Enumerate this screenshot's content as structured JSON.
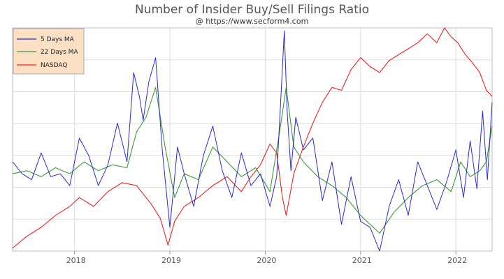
{
  "chart_data": {
    "type": "line",
    "title": "Number of Insider Buy/Sell Filings Ratio",
    "subtitle": "@ https://www.secform4.com",
    "xlabel": "",
    "ylabel": "",
    "x_ticks": [
      "2018",
      "2019",
      "2020",
      "2021",
      "2022"
    ],
    "xlim": [
      2017.35,
      2022.38
    ],
    "ylim": [
      0,
      7.5
    ],
    "grid": true,
    "legend_position": "top-left",
    "series": [
      {
        "name": "5 Days MA",
        "color": "#2929d6",
        "x": [
          2017.35,
          2017.45,
          2017.55,
          2017.65,
          2017.75,
          2017.85,
          2017.95,
          2018.05,
          2018.15,
          2018.25,
          2018.35,
          2018.45,
          2018.55,
          2018.62,
          2018.68,
          2018.72,
          2018.78,
          2018.85,
          2018.92,
          2019.0,
          2019.08,
          2019.15,
          2019.25,
          2019.35,
          2019.45,
          2019.55,
          2019.65,
          2019.75,
          2019.85,
          2019.95,
          2020.05,
          2020.12,
          2020.17,
          2020.2,
          2020.23,
          2020.27,
          2020.32,
          2020.4,
          2020.5,
          2020.6,
          2020.7,
          2020.8,
          2020.9,
          2021.0,
          2021.1,
          2021.2,
          2021.3,
          2021.4,
          2021.5,
          2021.6,
          2021.7,
          2021.8,
          2021.9,
          2022.0,
          2022.08,
          2022.15,
          2022.22,
          2022.28,
          2022.33,
          2022.38
        ],
        "values": [
          3.0,
          2.6,
          2.4,
          3.3,
          2.5,
          2.6,
          2.2,
          3.8,
          3.2,
          2.2,
          2.9,
          4.3,
          3.0,
          6.0,
          5.2,
          4.4,
          5.7,
          6.5,
          3.4,
          0.8,
          3.5,
          2.6,
          1.5,
          3.2,
          4.2,
          2.7,
          1.8,
          3.3,
          2.2,
          2.6,
          1.5,
          2.5,
          5.5,
          7.4,
          4.7,
          2.7,
          4.5,
          3.4,
          3.8,
          1.7,
          3.0,
          0.9,
          2.5,
          1.0,
          0.8,
          0.0,
          1.5,
          2.4,
          1.2,
          3.0,
          2.2,
          1.4,
          2.3,
          3.4,
          1.8,
          3.7,
          2.1,
          4.7,
          2.4,
          5.0
        ]
      },
      {
        "name": "22 Days MA",
        "color": "#3a9a3a",
        "x": [
          2017.35,
          2017.5,
          2017.65,
          2017.8,
          2017.95,
          2018.1,
          2018.25,
          2018.4,
          2018.55,
          2018.65,
          2018.75,
          2018.85,
          2018.95,
          2019.05,
          2019.15,
          2019.3,
          2019.45,
          2019.6,
          2019.75,
          2019.9,
          2020.05,
          2020.15,
          2020.22,
          2020.3,
          2020.4,
          2020.55,
          2020.7,
          2020.85,
          2021.0,
          2021.1,
          2021.2,
          2021.35,
          2021.5,
          2021.65,
          2021.8,
          2021.95,
          2022.05,
          2022.15,
          2022.25,
          2022.32,
          2022.38
        ],
        "values": [
          2.6,
          2.7,
          2.5,
          2.8,
          2.6,
          3.0,
          2.7,
          2.9,
          2.8,
          4.0,
          4.5,
          5.5,
          3.5,
          1.8,
          2.6,
          2.4,
          3.5,
          3.0,
          2.5,
          2.8,
          2.0,
          4.0,
          5.5,
          3.5,
          3.0,
          2.5,
          2.2,
          1.8,
          1.2,
          0.9,
          0.6,
          1.3,
          1.8,
          2.2,
          2.4,
          2.0,
          3.0,
          2.5,
          2.7,
          3.0,
          4.2
        ]
      },
      {
        "name": "NASDAQ",
        "color": "#ee2222",
        "x": [
          2017.35,
          2017.5,
          2017.65,
          2017.8,
          2017.95,
          2018.05,
          2018.2,
          2018.35,
          2018.5,
          2018.65,
          2018.8,
          2018.9,
          2018.98,
          2019.05,
          2019.15,
          2019.3,
          2019.45,
          2019.6,
          2019.75,
          2019.85,
          2019.95,
          2020.05,
          2020.12,
          2020.18,
          2020.22,
          2020.3,
          2020.4,
          2020.5,
          2020.6,
          2020.7,
          2020.8,
          2020.9,
          2021.0,
          2021.1,
          2021.2,
          2021.3,
          2021.4,
          2021.5,
          2021.6,
          2021.7,
          2021.8,
          2021.88,
          2021.95,
          2022.02,
          2022.1,
          2022.18,
          2022.25,
          2022.32,
          2022.38
        ],
        "values": [
          0.1,
          0.5,
          0.8,
          1.2,
          1.5,
          1.8,
          1.5,
          2.0,
          2.3,
          2.2,
          1.6,
          1.1,
          0.2,
          1.0,
          1.5,
          1.8,
          2.2,
          2.5,
          2.0,
          2.5,
          2.9,
          3.6,
          3.3,
          1.8,
          1.2,
          2.6,
          3.5,
          4.3,
          5.0,
          5.5,
          5.4,
          6.1,
          6.5,
          6.2,
          6.0,
          6.4,
          6.6,
          6.8,
          7.0,
          7.3,
          7.0,
          7.5,
          7.2,
          7.0,
          6.6,
          6.3,
          6.0,
          5.4,
          5.2
        ]
      }
    ]
  }
}
